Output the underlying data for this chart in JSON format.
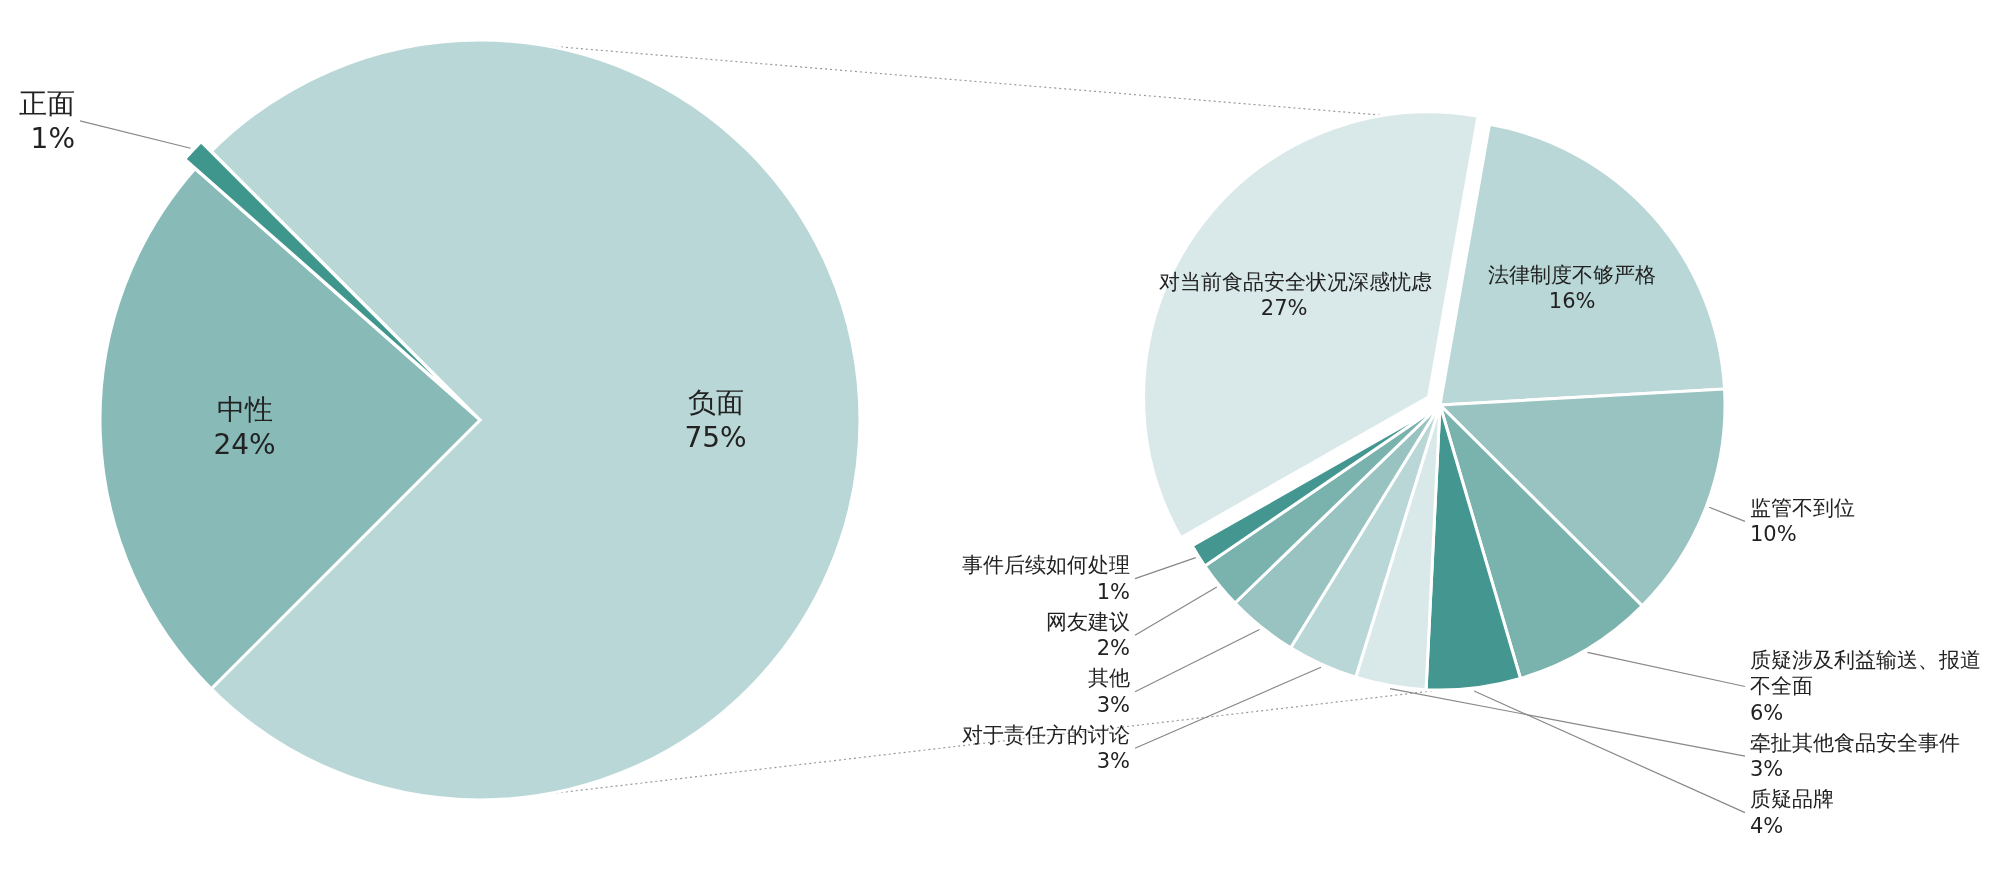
{
  "chart_data": [
    {
      "type": "pie",
      "categories": [
        "负面",
        "中性",
        "正面"
      ],
      "values": [
        75,
        24,
        1
      ],
      "value_labels": [
        "75%",
        "24%",
        "1%"
      ],
      "colors": [
        "#b8d7d6",
        "#88bbb8",
        "#3f968d"
      ]
    },
    {
      "type": "pie",
      "categories": [
        "法律制度不够严格",
        "监管不到位",
        "质疑涉及利益输送、报道不全面",
        "质疑品牌",
        "牵扯其他食品安全事件",
        "对于责任方的讨论",
        "其他",
        "网友建议",
        "事件后续如何处理",
        "对当前食品安全状况深感忧虑"
      ],
      "values": [
        16,
        10,
        6,
        4,
        3,
        3,
        3,
        2,
        1,
        27
      ],
      "value_labels": [
        "16%",
        "10%",
        "6%",
        "4%",
        "3%",
        "3%",
        "3%",
        "2%",
        "1%",
        "27%"
      ],
      "colors": [
        "#b8d7d6",
        "#98c3c0",
        "#7ab3ae",
        "#449690",
        "#d9e9e9",
        "#b8d7d6",
        "#98c3c0",
        "#7ab3ae",
        "#449690",
        "#d9e9e9"
      ]
    }
  ]
}
